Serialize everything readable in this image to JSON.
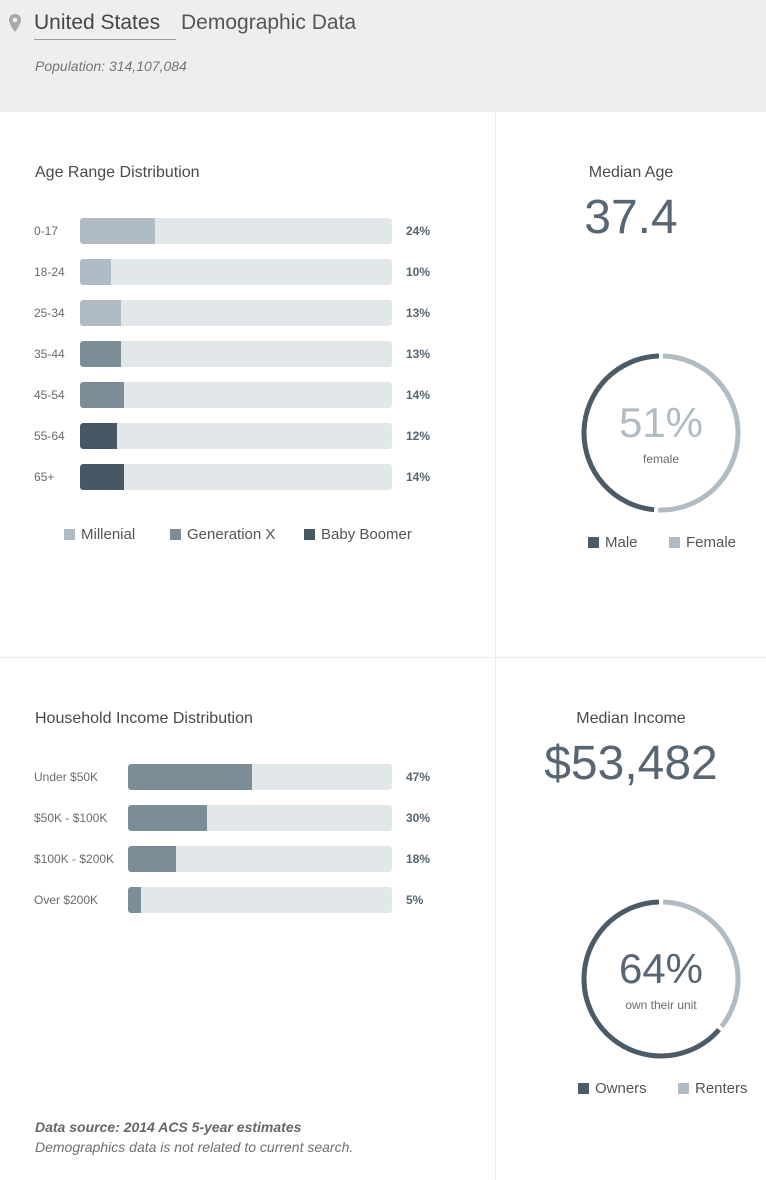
{
  "header": {
    "location": "United States",
    "title": "Demographic Data",
    "population": "Population: 314,107,084",
    "icon": "map-pin-icon"
  },
  "colors": {
    "millenial": "#b0bcc3",
    "generation_x": "#7b8e98",
    "baby_boomer": "#465864",
    "track": "#e2e7e9",
    "male": "#4b5b67",
    "female": "#b0bcc3",
    "owners": "#4b5b67",
    "renters": "#b0bcc3"
  },
  "age": {
    "title": "Age Range Distribution",
    "legend": [
      "Millenial",
      "Generation X",
      "Baby Boomer"
    ]
  },
  "income": {
    "title": "Household Income Distribution"
  },
  "median_age": {
    "label": "Median Age",
    "value": "37.4"
  },
  "median_income": {
    "label": "Median Income",
    "value": "$53,482"
  },
  "gender": {
    "percent_label": "51%",
    "sub": "female",
    "legend": [
      "Male",
      "Female"
    ]
  },
  "ownership": {
    "percent_label": "64%",
    "sub": "own their unit",
    "legend": [
      "Owners",
      "Renters"
    ]
  },
  "footer": {
    "source": "Data source: 2014 ACS 5-year estimates",
    "note": "Demographics data is not related to current search."
  },
  "chart_data": [
    {
      "type": "bar",
      "title": "Age Range Distribution",
      "categories": [
        "0-17",
        "18-24",
        "25-34",
        "35-44",
        "45-54",
        "55-64",
        "65+"
      ],
      "values": [
        24,
        10,
        13,
        13,
        14,
        12,
        14
      ],
      "value_labels": [
        "24%",
        "10%",
        "13%",
        "13%",
        "14%",
        "12%",
        "14%"
      ],
      "groups": [
        "Millenial",
        "Millenial",
        "Millenial",
        "Generation X",
        "Generation X",
        "Baby Boomer",
        "Baby Boomer"
      ],
      "ylim": [
        0,
        100
      ],
      "orientation": "horizontal",
      "legend": "bottom"
    },
    {
      "type": "bar",
      "title": "Household Income Distribution",
      "categories": [
        "Under $50K",
        "$50K - $100K",
        "$100K - $200K",
        "Over $200K"
      ],
      "values": [
        47,
        30,
        18,
        5
      ],
      "value_labels": [
        "47%",
        "30%",
        "18%",
        "5%"
      ],
      "ylim": [
        0,
        100
      ],
      "orientation": "horizontal"
    },
    {
      "type": "pie",
      "categories": [
        "Male",
        "Female"
      ],
      "values": [
        49,
        51
      ],
      "style": "donut",
      "legend": "bottom"
    },
    {
      "type": "pie",
      "categories": [
        "Owners",
        "Renters"
      ],
      "values": [
        64,
        36
      ],
      "style": "donut",
      "legend": "bottom"
    }
  ]
}
